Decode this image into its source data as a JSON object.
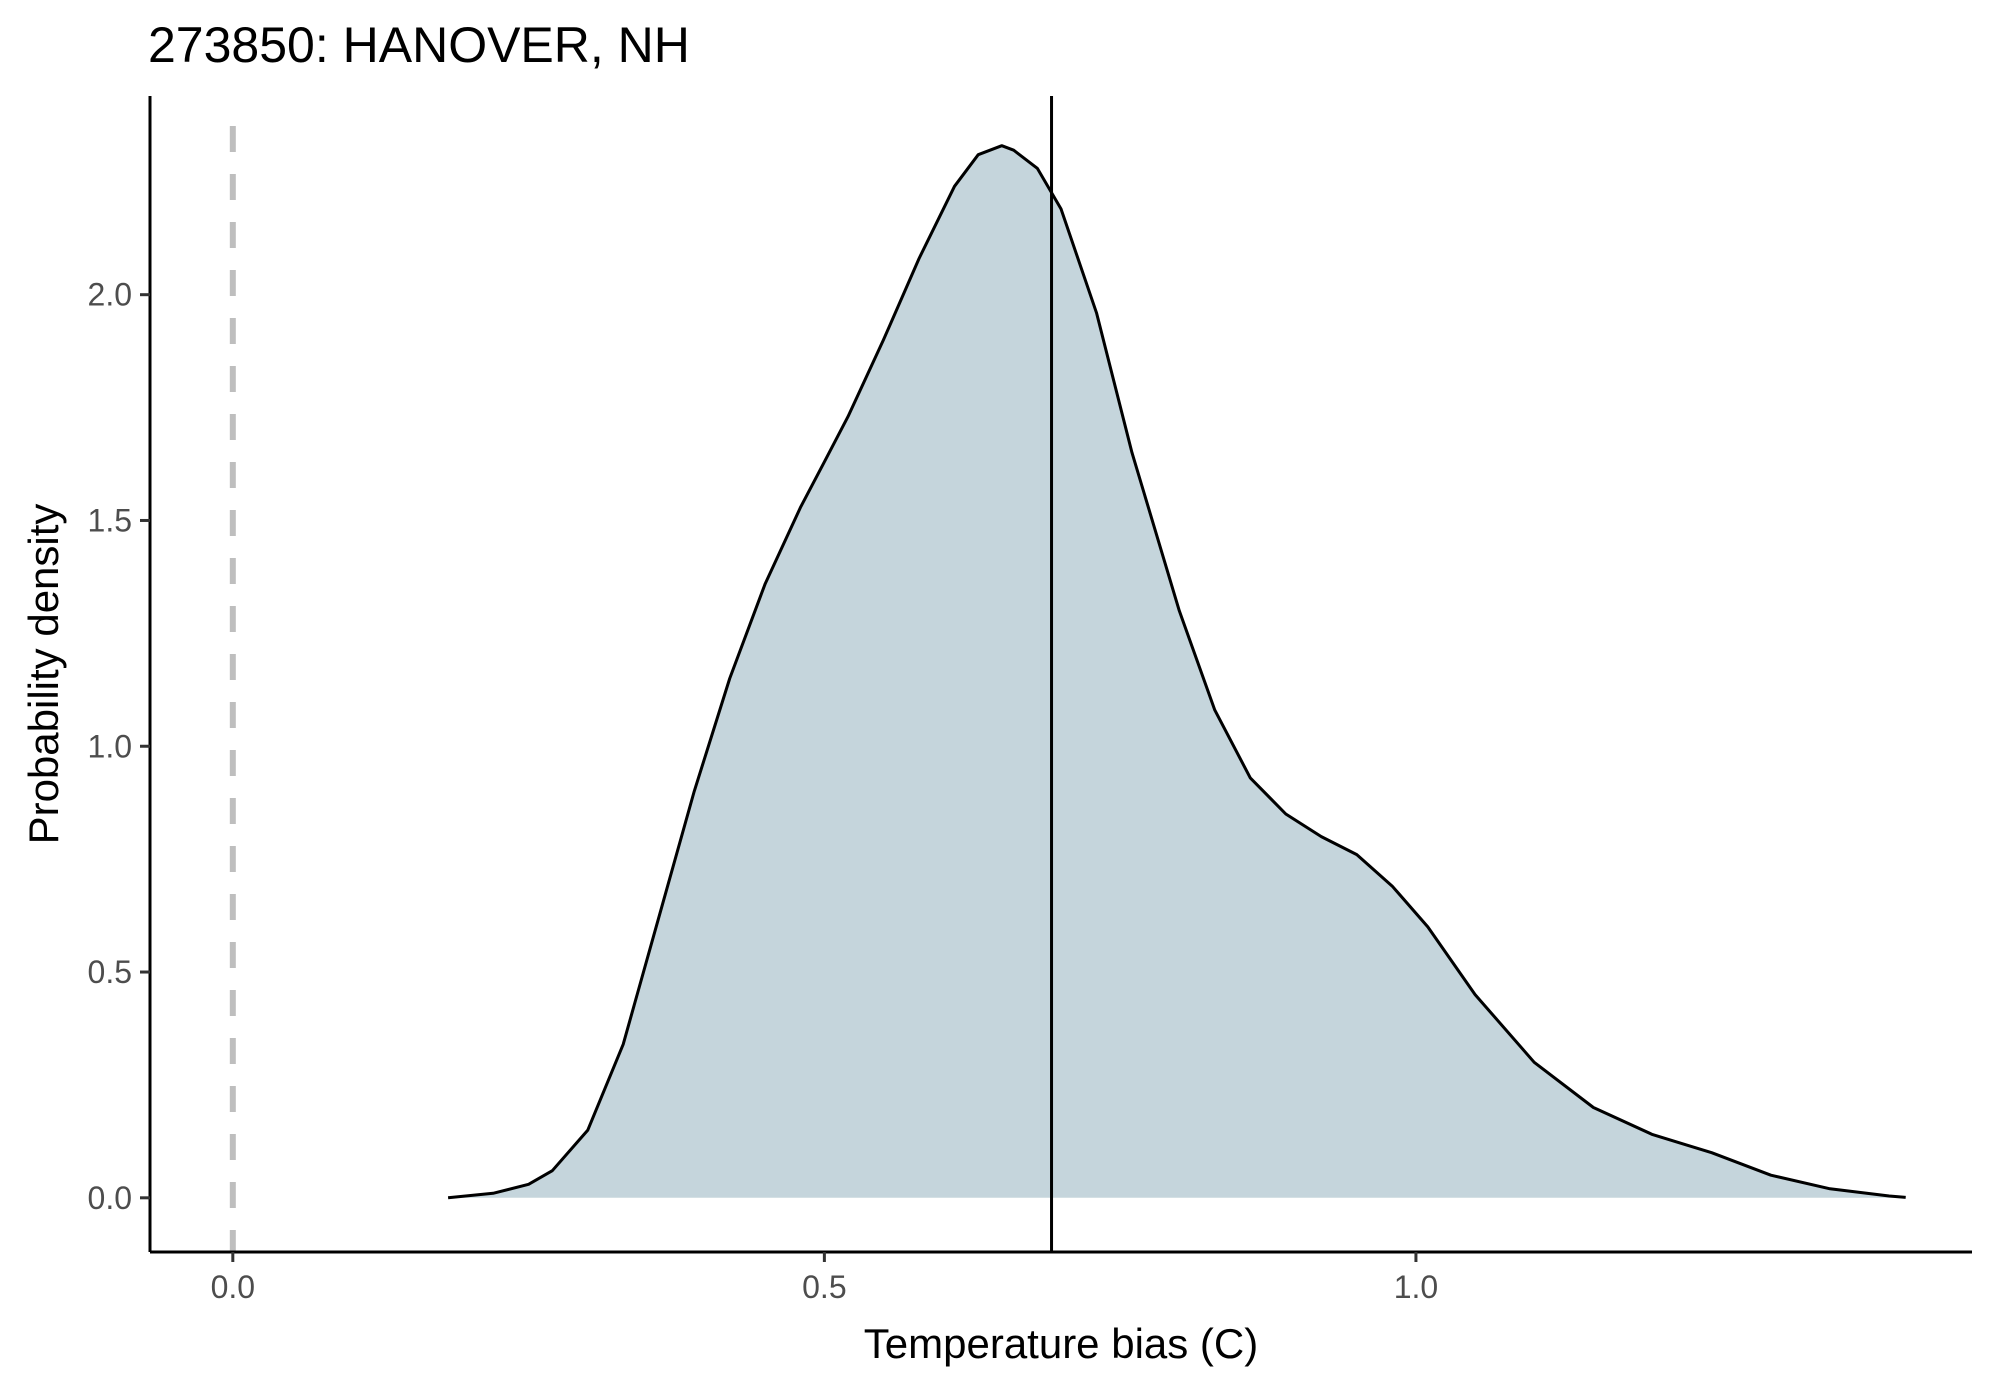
{
  "chart_data": {
    "type": "area",
    "title": "273850: HANOVER, NH",
    "xlabel": "Temperature bias (C)",
    "ylabel": "Probability density",
    "xlim": [
      -0.07,
      1.47
    ],
    "ylim": [
      -0.12,
      2.44
    ],
    "x_ticks": [
      0.0,
      0.5,
      1.0
    ],
    "x_tick_labels": [
      "0.0",
      "0.5",
      "1.0"
    ],
    "y_ticks": [
      0.0,
      0.5,
      1.0,
      1.5,
      2.0
    ],
    "y_tick_labels": [
      "0.0",
      "0.5",
      "1.0",
      "1.5",
      "2.0"
    ],
    "grid": false,
    "fill_color": "#c5d5dc",
    "line_color": "#000000",
    "reference_lines": [
      {
        "x": 0.0,
        "style": "dashed",
        "color": "#bebebe"
      },
      {
        "x": 0.692,
        "style": "solid",
        "color": "#000000"
      }
    ],
    "series": [
      {
        "x": [
          0.182,
          0.22,
          0.25,
          0.27,
          0.3,
          0.33,
          0.36,
          0.39,
          0.42,
          0.45,
          0.48,
          0.5,
          0.52,
          0.55,
          0.58,
          0.61,
          0.63,
          0.65,
          0.66,
          0.68,
          0.7,
          0.73,
          0.76,
          0.8,
          0.83,
          0.86,
          0.89,
          0.92,
          0.95,
          0.98,
          1.01,
          1.05,
          1.1,
          1.15,
          1.2,
          1.25,
          1.3,
          1.35,
          1.4,
          1.414
        ],
        "y": [
          0.0,
          0.01,
          0.03,
          0.06,
          0.15,
          0.34,
          0.62,
          0.9,
          1.15,
          1.36,
          1.53,
          1.63,
          1.73,
          1.9,
          2.08,
          2.24,
          2.31,
          2.33,
          2.32,
          2.28,
          2.19,
          1.96,
          1.65,
          1.3,
          1.08,
          0.93,
          0.85,
          0.8,
          0.76,
          0.69,
          0.6,
          0.45,
          0.3,
          0.2,
          0.14,
          0.1,
          0.05,
          0.02,
          0.004,
          0.001
        ]
      }
    ]
  }
}
